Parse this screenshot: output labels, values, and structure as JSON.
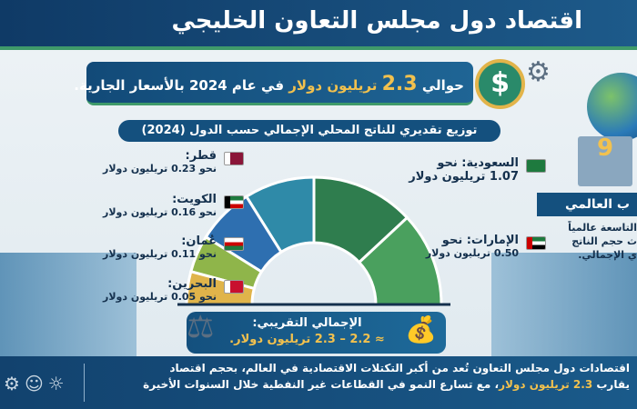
{
  "title": "اقتصاد دول مجلس التعاون الخليجي",
  "headline": {
    "prefix": "حوالي",
    "value": "2.3",
    "unit": "تريليون دولار",
    "suffix": "في عام 2024 بالأسعار الجارية."
  },
  "headline_icon": "dollar-coin-icon",
  "section_title": "توزيع تقديري للناتج المحلي الإجمالي حسب الدول (2024)",
  "countries": [
    {
      "name": "السعودية: نحو",
      "value": "1.07 تريليون دولار",
      "gdp_trillion": 1.07,
      "color": "#2f7d4e",
      "flag": "saudi-flag-icon"
    },
    {
      "name": "الإمارات: نحو",
      "value": "0.50 تريليون دولار",
      "gdp_trillion": 0.5,
      "color": "#4aa05e",
      "flag": "uae-flag-icon"
    },
    {
      "name": "قطر:",
      "value": "نحو 0.23 تريليون دولار",
      "gdp_trillion": 0.23,
      "color": "#2f8aa8",
      "flag": "qatar-flag-icon"
    },
    {
      "name": "الكويت:",
      "value": "نحو 0.16 تريليون دولار",
      "gdp_trillion": 0.16,
      "color": "#2e6fb0",
      "flag": "kuwait-flag-icon"
    },
    {
      "name": "عُمان:",
      "value": "نحو 0.11 تريليون دولار",
      "gdp_trillion": 0.11,
      "color": "#8fb54a",
      "flag": "oman-flag-icon"
    },
    {
      "name": "البحرين:",
      "value": "نحو 0.05 تريليون دولار",
      "gdp_trillion": 0.05,
      "color": "#e0b44a",
      "flag": "bahrain-flag-icon"
    }
  ],
  "ranking": {
    "rank": "9",
    "heading": "ب العالمي",
    "desc": [
      "التاسعة عالمياً",
      "ث حجم الناتج",
      "ي الإجمالي."
    ]
  },
  "total": {
    "label": "الإجمالي التقريبي:",
    "value": "≈ 2.2 – 2.3 تريليون دولار."
  },
  "footer": {
    "line1": "اقتصادات دول مجلس التعاون تُعد من أكبر التكتلات الاقتصادية في العالم، بحجم اقتصاد",
    "line2_prefix": "يقارب",
    "line2_hl": "2.3 تريليون دولار",
    "line2_rest": "، مع تسارع النمو في القطاعات غير النفطية خلال السنوات الأخيرة"
  },
  "footer_icons": [
    "chip-gear-icon",
    "worker-icon",
    "renewable-energy-icon"
  ]
}
